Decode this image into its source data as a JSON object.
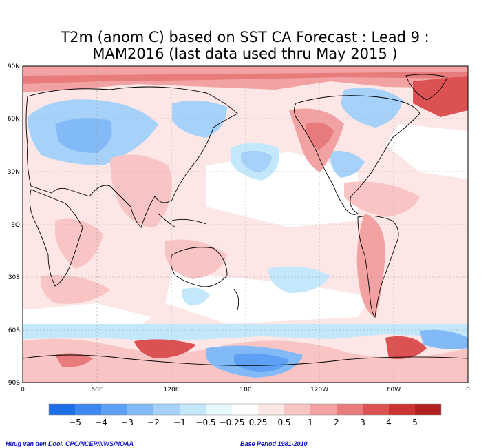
{
  "title_line1": "T2m (anom C) based on SST CA Forecast : Lead 9 :",
  "title_line2": "MAM2016 (last data used thru May 2015 )",
  "lat_labels": [
    "90N",
    "60N",
    "30N",
    "EQ",
    "30S",
    "60S",
    "90S"
  ],
  "lon_labels": [
    "0",
    "60E",
    "120E",
    "180",
    "120W",
    "60W",
    "0"
  ],
  "colorbar": {
    "labels": [
      "−5",
      "−4",
      "−3",
      "−2",
      "−1",
      "−0.5",
      "−0.25",
      "0.25",
      "0.5",
      "1",
      "2",
      "3",
      "4",
      "5"
    ],
    "colors": [
      "#1e6ee8",
      "#3c88f0",
      "#5ea0f5",
      "#82baf8",
      "#a6d2fa",
      "#c4e8fb",
      "#e6f8fc",
      "#ffffff",
      "#fde6e6",
      "#f8c4c4",
      "#f2a2a2",
      "#e87c7c",
      "#dc5252",
      "#cc3434",
      "#b02020"
    ]
  },
  "credit_left": "Huug van den Dool. CPC/NCEP/NWS/NOAA",
  "credit_right": "Base Period 1981-2010"
}
